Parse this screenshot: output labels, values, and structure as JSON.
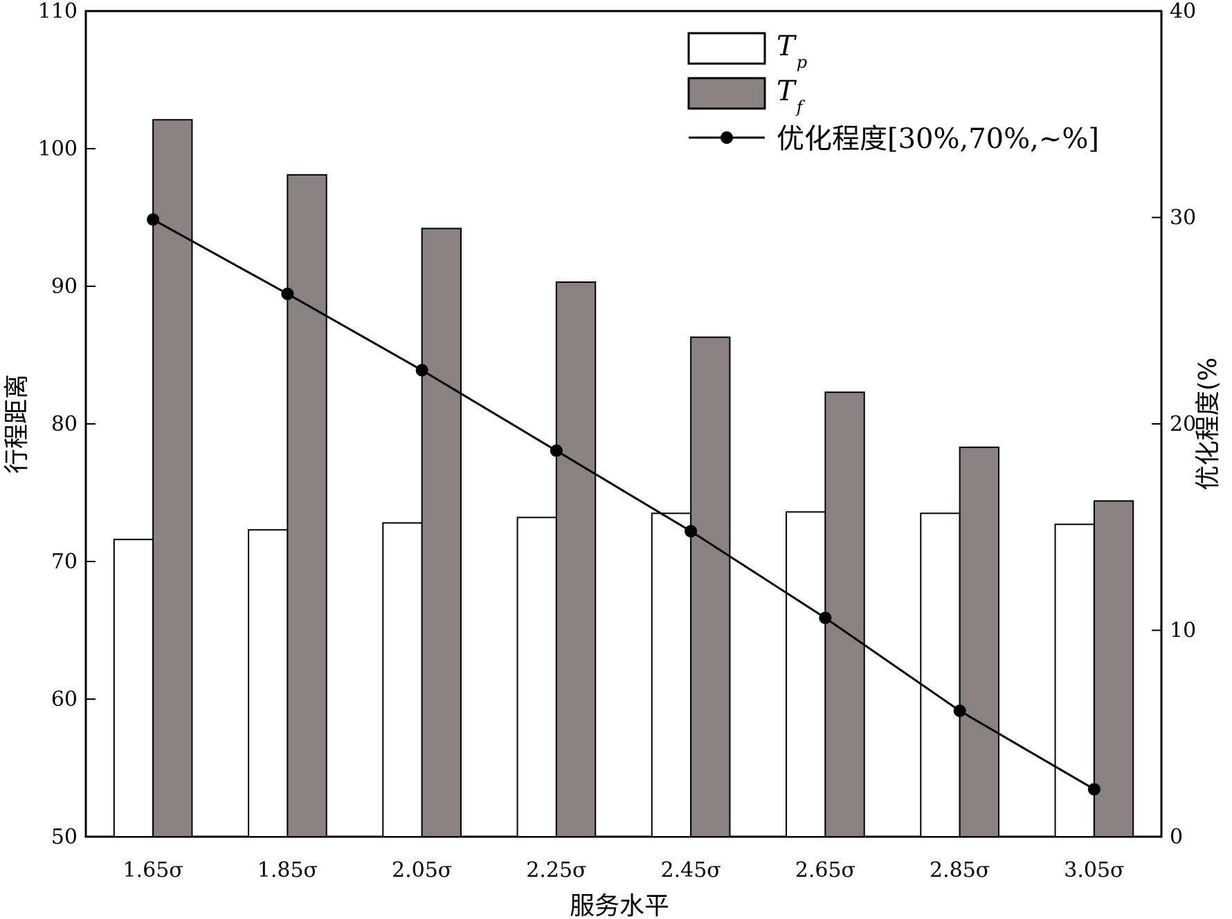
{
  "colors": {
    "tp_fill": "#ffffff",
    "tf_fill": "#8a8182",
    "stroke": "#000000",
    "line": "#000000"
  },
  "chart_data": {
    "type": "bar",
    "title": "",
    "xlabel": "服务水平",
    "ylabel_left": "行程距离",
    "ylabel_right": "优化程度(%",
    "categories": [
      "1.65σ",
      "1.85σ",
      "2.05σ",
      "2.25σ",
      "2.45σ",
      "2.65σ",
      "2.85σ",
      "3.05σ"
    ],
    "ylim_left": [
      50,
      110
    ],
    "yticks_left": [
      50,
      60,
      70,
      80,
      90,
      100,
      110
    ],
    "ylim_right": [
      0,
      40
    ],
    "yticks_right": [
      0,
      10,
      20,
      30,
      40
    ],
    "grid": false,
    "legend_position": "top-right",
    "series": [
      {
        "name_main": "T",
        "name_sub": "p",
        "kind": "bar",
        "axis": "left",
        "values": [
          71.6,
          72.3,
          72.8,
          73.2,
          73.5,
          73.6,
          73.5,
          72.7
        ]
      },
      {
        "name_main": "T",
        "name_sub": "f",
        "kind": "bar",
        "axis": "left",
        "values": [
          102.1,
          98.1,
          94.2,
          90.3,
          86.3,
          82.3,
          78.3,
          74.4
        ]
      },
      {
        "name": "优化程度[30%,70%,~%]",
        "kind": "line",
        "axis": "right",
        "values": [
          29.9,
          26.3,
          22.6,
          18.7,
          14.8,
          10.6,
          6.1,
          2.3
        ]
      }
    ]
  }
}
